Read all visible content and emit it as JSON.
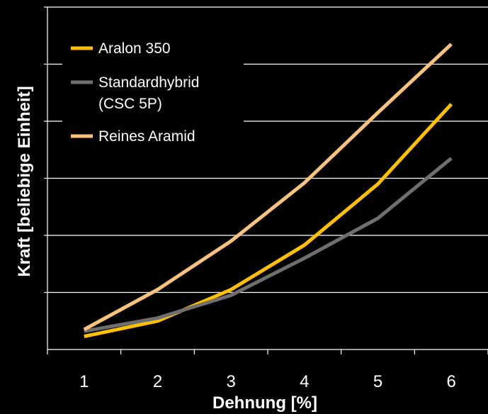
{
  "chart_data": {
    "type": "line",
    "title": "",
    "xlabel": "Dehnung [%]",
    "ylabel": "Kraft [beliebige Einheit]",
    "x": [
      1,
      2,
      3,
      4,
      5,
      6
    ],
    "xlim": [
      0.5,
      6.5
    ],
    "ylim": [
      0,
      6
    ],
    "y_tick_labels_shown": false,
    "grid": "horizontal",
    "legend_position": "top-left",
    "series": [
      {
        "name": "Aralon 350",
        "color": "#ffc000",
        "values": [
          0.23,
          0.5,
          1.05,
          1.83,
          2.9,
          4.3
        ]
      },
      {
        "name": "Standardhybrid\n(CSC 5P)",
        "color": "#6f6f6f",
        "values": [
          0.32,
          0.55,
          0.95,
          1.6,
          2.3,
          3.35
        ]
      },
      {
        "name": "Reines Aramid",
        "color": "#fac37d",
        "values": [
          0.35,
          1.05,
          1.9,
          2.92,
          4.15,
          5.35
        ]
      }
    ]
  }
}
